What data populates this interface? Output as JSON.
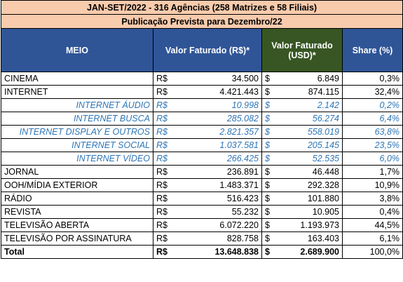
{
  "header": {
    "title": "JAN-SET/2022 - 316 Agências (258 Matrizes e 58 Filiais)",
    "subtitle": "Publicação Prevista para Dezembro/22"
  },
  "table": {
    "columns": [
      "MEIO",
      "Valor Faturado (R$)*",
      "Valor Faturado (USD)*",
      "Share (%)"
    ],
    "rows": [
      [
        "CINEMA",
        "R$",
        "34.500",
        "$",
        "6.849",
        "0,3%"
      ],
      [
        "INTERNET",
        "R$",
        "4.421.443",
        "$",
        "874.115",
        "32,4%"
      ],
      [
        "INTERNET ÁUDIO",
        "R$",
        "10.998",
        "$",
        "2.142",
        "0,2%"
      ],
      [
        "INTERNET BUSCA",
        "R$",
        "285.082",
        "$",
        "56.274",
        "6,4%"
      ],
      [
        "INTERNET DISPLAY E OUTROS",
        "R$",
        "2.821.357",
        "$",
        "558.019",
        "63,8%"
      ],
      [
        "INTERNET SOCIAL",
        "R$",
        "1.037.581",
        "$",
        "205.145",
        "23,5%"
      ],
      [
        "INTERNET VÍDEO",
        "R$",
        "266.425",
        "$",
        "52.535",
        "6,0%"
      ],
      [
        "JORNAL",
        "R$",
        "236.891",
        "$",
        "46.448",
        "1,7%"
      ],
      [
        "OOH/MÍDIA EXTERIOR",
        "R$",
        "1.483.371",
        "$",
        "292.328",
        "10,9%"
      ],
      [
        "RÁDIO",
        "R$",
        "516.423",
        "$",
        "101.880",
        "3,8%"
      ],
      [
        "REVISTA",
        "R$",
        "55.232",
        "$",
        "10.905",
        "0,4%"
      ],
      [
        "TELEVISÃO ABERTA",
        "R$",
        "6.072.220",
        "$",
        "1.193.973",
        "44,5%"
      ],
      [
        "TELEVISÃO POR ASSINATURA",
        "R$",
        "828.758",
        "$",
        "163.403",
        "6,1%"
      ],
      [
        "Total",
        "R$",
        "13.648.838",
        "$",
        "2.689.900",
        "100,0%"
      ]
    ]
  }
}
